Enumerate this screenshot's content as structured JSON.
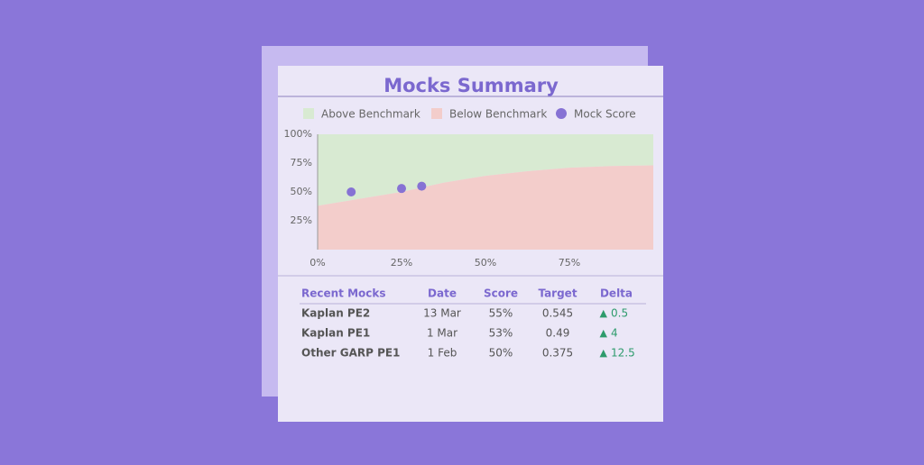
{
  "title": "Mocks Summary",
  "chart_data": {
    "type": "area",
    "legend": [
      {
        "name": "Above Benchmark",
        "color": "#d8ead2"
      },
      {
        "name": "Below Benchmark",
        "color": "#f3cdcb"
      },
      {
        "name": "Mock Score",
        "color": "#8672d4"
      }
    ],
    "benchmark": {
      "x": [
        0,
        12.5,
        25,
        37.5,
        50,
        62.5,
        75,
        87.5,
        100
      ],
      "values": [
        38,
        44,
        50,
        58,
        64,
        68,
        71,
        72.5,
        73
      ]
    },
    "scores": {
      "x": [
        10,
        25,
        31
      ],
      "values": [
        50,
        53,
        55
      ]
    },
    "xlim": [
      0,
      100
    ],
    "ylim": [
      0,
      100
    ],
    "xticks": [
      {
        "value": 0,
        "label": "0%"
      },
      {
        "value": 25,
        "label": "25%"
      },
      {
        "value": 50,
        "label": "50%"
      },
      {
        "value": 75,
        "label": "75%"
      }
    ],
    "yticks": [
      {
        "value": 25,
        "label": "25%"
      },
      {
        "value": 50,
        "label": "50%"
      },
      {
        "value": 75,
        "label": "75%"
      },
      {
        "value": 100,
        "label": "100%"
      }
    ]
  },
  "table": {
    "header": [
      "Recent Mocks",
      "Date",
      "Score",
      "Target",
      "Delta"
    ],
    "rows": [
      [
        "Kaplan PE2",
        "13 Mar",
        "55%",
        "0.545",
        "0.5"
      ],
      [
        "Kaplan PE1",
        "1 Mar",
        "53%",
        "0.49",
        "4"
      ],
      [
        "Other GARP PE1",
        "1 Feb",
        "50%",
        "0.375",
        "12.5"
      ]
    ]
  }
}
